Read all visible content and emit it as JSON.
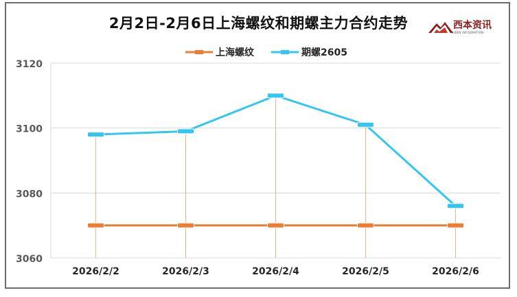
{
  "header": {
    "title": "2月2日-2月6日上海螺纹和期螺主力合约走势",
    "logo_text": "西本资讯",
    "logo_sub": "XIBEN INFORMATION"
  },
  "colors": {
    "series_1": "#ed7d31",
    "series_2": "#33c6f0",
    "grid": "#d9d9d9",
    "axis_text": "#595959"
  },
  "chart_data": {
    "type": "line",
    "categories": [
      "2026/2/2",
      "2026/2/3",
      "2026/2/4",
      "2026/2/5",
      "2026/2/6"
    ],
    "series": [
      {
        "name": "上海螺纹",
        "values": [
          3070,
          3070,
          3070,
          3070,
          3070
        ]
      },
      {
        "name": "期螺2605",
        "values": [
          3098,
          3099,
          3110,
          3101,
          3076
        ]
      }
    ],
    "ylim": [
      3060,
      3120
    ],
    "yticks": [
      "3060",
      "3080",
      "3100",
      "3120"
    ],
    "grid": true,
    "legend": "top-center",
    "xlabel": "",
    "ylabel": ""
  }
}
